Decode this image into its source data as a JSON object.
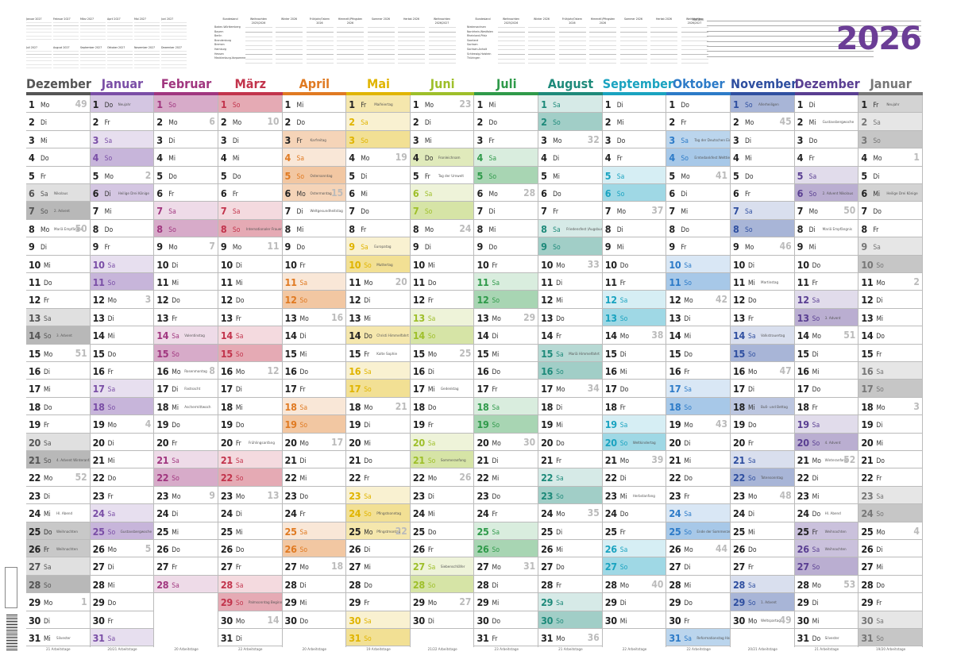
{
  "year": "2026",
  "notes_label": "Notizen",
  "mini_calendars": [
    {
      "title": "Januar 2027"
    },
    {
      "title": "Februar 2027"
    },
    {
      "title": "März 2027"
    },
    {
      "title": "April 2027"
    },
    {
      "title": "Mai 2027"
    },
    {
      "title": "Juni 2027"
    },
    {
      "title": "Juli 2027"
    },
    {
      "title": "August 2027"
    },
    {
      "title": "September 2027"
    },
    {
      "title": "Oktober 2027"
    },
    {
      "title": "November 2027"
    },
    {
      "title": "Dezember 2027"
    }
  ],
  "holiday_table_headers": [
    "Bundesland",
    "Weihnachten 2025/2026",
    "Winter 2026",
    "Frühjahr/Ostern 2026",
    "Himmelf./Pfingsten 2026",
    "Sommer 2026",
    "Herbst 2026",
    "Weihnachten 2026/2027",
    "Bundesland",
    "Weihnachten 2025/2026",
    "Winter 2026",
    "Frühjahr/Ostern 2026",
    "Himmelf./Pfingsten 2026",
    "Sommer 2026",
    "Herbst 2026",
    "Weihnachten 2026/2027"
  ],
  "states_left": [
    "Baden-Württemberg",
    "Bayern",
    "Berlin",
    "Brandenburg",
    "Bremen",
    "Hamburg",
    "Hessen",
    "Mecklenburg-Vorpommern"
  ],
  "states_right": [
    "Niedersachsen",
    "Nordrhein-Westfalen",
    "Rheinland-Pfalz",
    "Saarland",
    "Sachsen",
    "Sachsen-Anhalt",
    "Schleswig-Holstein",
    "Thüringen"
  ],
  "colors": {
    "Dezember": "#555555",
    "Januar": "#7a4ea6",
    "Februar": "#a0367f",
    "März": "#c2344c",
    "April": "#e07a22",
    "Mai": "#e0b400",
    "Juni": "#9ebf2a",
    "Juli": "#2f9a4a",
    "August": "#1e8a7a",
    "September": "#1aa3c0",
    "Oktober": "#2d7bc8",
    "November": "#2f4fa0",
    "Dezember2": "#5a3f92",
    "Januar2": "#777777"
  },
  "months": [
    {
      "name": "Dezember",
      "color_key": "Dezember",
      "start": "Mo",
      "days": 31,
      "notes": {
        "6": "Nikolaus",
        "7": "2. Advent",
        "8": "Mariä Empfängnis",
        "14": "3. Advent",
        "21": "4. Advent Winteranfang",
        "24": "Hl. Abend",
        "25": "Weihnachten",
        "26": "Weihnachten",
        "31": "Silvester"
      },
      "kw": {
        "1": "49",
        "8": "50",
        "15": "51",
        "22": "52",
        "29": "1"
      },
      "workdays": "21 Arbeitstage"
    },
    {
      "name": "Januar",
      "color_key": "Januar",
      "start": "Do",
      "days": 31,
      "notes": {
        "1": "Neujahr",
        "6": "Heilige Drei Könige",
        "25": "Gustavsbergwoche"
      },
      "kw": {
        "5": "2",
        "12": "3",
        "19": "4",
        "26": "5"
      },
      "workdays": "20/21 Arbeitstage"
    },
    {
      "name": "Februar",
      "color_key": "Februar",
      "start": "So",
      "days": 28,
      "notes": {
        "14": "Valentinstag",
        "16": "Rosenmontag",
        "17": "Fastnacht",
        "18": "Aschermittwoch"
      },
      "kw": {
        "2": "6",
        "9": "7",
        "16": "8",
        "23": "9"
      },
      "workdays": "20 Arbeitstage"
    },
    {
      "name": "März",
      "color_key": "März",
      "start": "So",
      "days": 31,
      "notes": {
        "8": "Internationaler Frauentag",
        "20": "Frühlingsanfang",
        "29": "Palmsonntag Beginn der Sommerzeit"
      },
      "kw": {
        "2": "10",
        "9": "11",
        "16": "12",
        "23": "13",
        "30": "14"
      },
      "workdays": "22 Arbeitstage"
    },
    {
      "name": "April",
      "color_key": "April",
      "start": "Mi",
      "days": 30,
      "notes": {
        "3": "Karfreitag",
        "5": "Ostersonntag",
        "6": "Ostermontag",
        "7": "Weltgesundheitstag"
      },
      "kw": {
        "6": "15",
        "13": "16",
        "20": "17",
        "27": "18"
      },
      "workdays": "20 Arbeitstage"
    },
    {
      "name": "Mai",
      "color_key": "Mai",
      "start": "Fr",
      "days": 31,
      "notes": {
        "1": "Maifeiertag",
        "9": "Europatag",
        "10": "Muttertag",
        "14": "Christi Himmelfahrt",
        "15": "Kalte Sophie",
        "24": "Pfingstsonntag",
        "25": "Pfingstmontag"
      },
      "kw": {
        "4": "19",
        "11": "20",
        "18": "21",
        "25": "22"
      },
      "workdays": "19 Arbeitstage"
    },
    {
      "name": "Juni",
      "color_key": "Juni",
      "start": "Mo",
      "days": 30,
      "notes": {
        "4": "Fronleichnam",
        "5": "Tag der Umwelt",
        "17": "Gedenktag",
        "21": "Sommeranfang",
        "27": "Siebenschläfer"
      },
      "kw": {
        "1": "23",
        "8": "24",
        "15": "25",
        "22": "26",
        "29": "27"
      },
      "workdays": "21/22 Arbeitstage"
    },
    {
      "name": "Juli",
      "color_key": "Juli",
      "start": "Mi",
      "days": 31,
      "notes": {},
      "kw": {
        "6": "28",
        "13": "29",
        "20": "30",
        "27": "31"
      },
      "workdays": "23 Arbeitstage"
    },
    {
      "name": "August",
      "color_key": "August",
      "start": "Sa",
      "days": 31,
      "notes": {
        "8": "Friedensfest (Augsburg)",
        "15": "Mariä Himmelfahrt"
      },
      "kw": {
        "3": "32",
        "10": "33",
        "17": "34",
        "24": "35",
        "31": "36"
      },
      "workdays": "21 Arbeitstage"
    },
    {
      "name": "September",
      "color_key": "September",
      "start": "Di",
      "days": 30,
      "notes": {
        "20": "Weltkindertag",
        "23": "Herbstanfang"
      },
      "kw": {
        "7": "37",
        "14": "38",
        "21": "39",
        "28": "40"
      },
      "workdays": "22 Arbeitstage"
    },
    {
      "name": "Oktober",
      "color_key": "Oktober",
      "start": "Do",
      "days": 31,
      "notes": {
        "3": "Tag der Deutschen Einheit",
        "4": "Erntedankfest Welttierschutztag",
        "25": "Ende der Sommerzeit",
        "31": "Reformationstag Halloween"
      },
      "kw": {
        "5": "41",
        "12": "42",
        "19": "43",
        "26": "44"
      },
      "workdays": "22 Arbeitstage"
    },
    {
      "name": "November",
      "color_key": "November",
      "start": "So",
      "days": 30,
      "notes": {
        "1": "Allerheiligen",
        "11": "Martinstag",
        "14": "Volkstrauertag",
        "18": "Buß- und Bettag",
        "22": "Totensonntag",
        "29": "1. Advent",
        "30": "Weltspartag"
      },
      "kw": {
        "2": "45",
        "9": "46",
        "16": "47",
        "23": "48",
        "30": "49"
      },
      "workdays": "20/21 Arbeitstage"
    },
    {
      "name": "Dezember",
      "color_key": "Dezember2",
      "start": "Di",
      "days": 31,
      "notes": {
        "2": "Gustavsbergwoche",
        "6": "2. Advent Nikolaus",
        "8": "Mariä Empfängnis",
        "13": "3. Advent",
        "20": "4. Advent",
        "21": "Winteranfang",
        "24": "Hl. Abend",
        "25": "Weihnachten",
        "26": "Weihnachten",
        "31": "Silvester"
      },
      "kw": {
        "7": "50",
        "14": "51",
        "21": "52",
        "28": "53"
      },
      "workdays": "21 Arbeitstage"
    },
    {
      "name": "Januar",
      "color_key": "Januar2",
      "start": "Fr",
      "days": 31,
      "notes": {
        "1": "Neujahr",
        "6": "Heilige Drei Könige"
      },
      "kw": {
        "4": "1",
        "11": "2",
        "18": "3",
        "25": "4"
      },
      "workdays": "19/20 Arbeitstage"
    }
  ],
  "weekdays": [
    "Mo",
    "Di",
    "Mi",
    "Do",
    "Fr",
    "Sa",
    "So"
  ]
}
